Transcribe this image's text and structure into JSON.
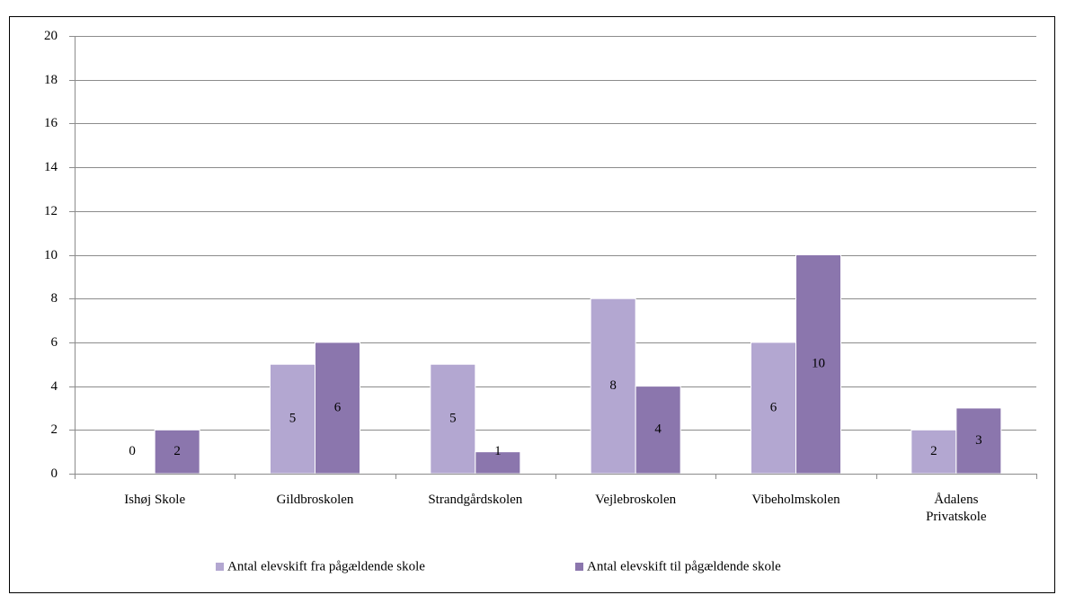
{
  "chart_data": {
    "type": "bar",
    "categories": [
      "Ishøj Skole",
      "Gildbroskolen",
      "Strandgårdskolen",
      "Vejlebroskolen",
      "Vibeholmskolen",
      "Ådalens\nPrivatskole"
    ],
    "series": [
      {
        "name": "Antal elevskift fra pågældende skole",
        "color": "#b3a7d1",
        "values": [
          0,
          5,
          5,
          8,
          6,
          2
        ]
      },
      {
        "name": "Antal elevskift til pågældende skole",
        "color": "#8b76ad",
        "values": [
          2,
          6,
          1,
          4,
          10,
          3
        ]
      }
    ],
    "ylim": [
      0,
      20
    ],
    "yticks": [
      0,
      2,
      4,
      6,
      8,
      10,
      12,
      14,
      16,
      18,
      20
    ],
    "grid": true,
    "legend": "bottom"
  }
}
